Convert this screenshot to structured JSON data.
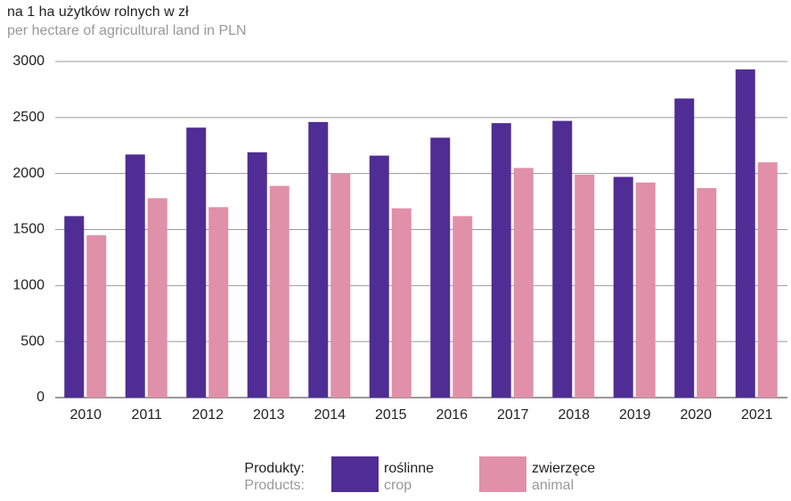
{
  "chart_data": {
    "type": "bar",
    "title": "na 1 ha użytków rolnych w zł",
    "subtitle": "per hectare of agricultural land in PLN",
    "categories": [
      "2010",
      "2011",
      "2012",
      "2013",
      "2014",
      "2015",
      "2016",
      "2017",
      "2018",
      "2019",
      "2020",
      "2021"
    ],
    "series": [
      {
        "name": "roślinne",
        "name_en": "crop",
        "color": "#4f2d94",
        "values": [
          1620,
          2170,
          2410,
          2190,
          2460,
          2160,
          2320,
          2450,
          2470,
          1970,
          2670,
          2930
        ]
      },
      {
        "name": "zwierzęce",
        "name_en": "animal",
        "color": "#e090a8",
        "values": [
          1450,
          1780,
          1700,
          1890,
          2000,
          1690,
          1620,
          2050,
          1990,
          1920,
          1870,
          2100
        ]
      }
    ],
    "legend_title": [
      "Produkty:",
      "Products:"
    ],
    "ylim": [
      0,
      3000
    ],
    "yticks": [
      0,
      500,
      1000,
      1500,
      2000,
      2500,
      3000
    ],
    "grid": true
  }
}
